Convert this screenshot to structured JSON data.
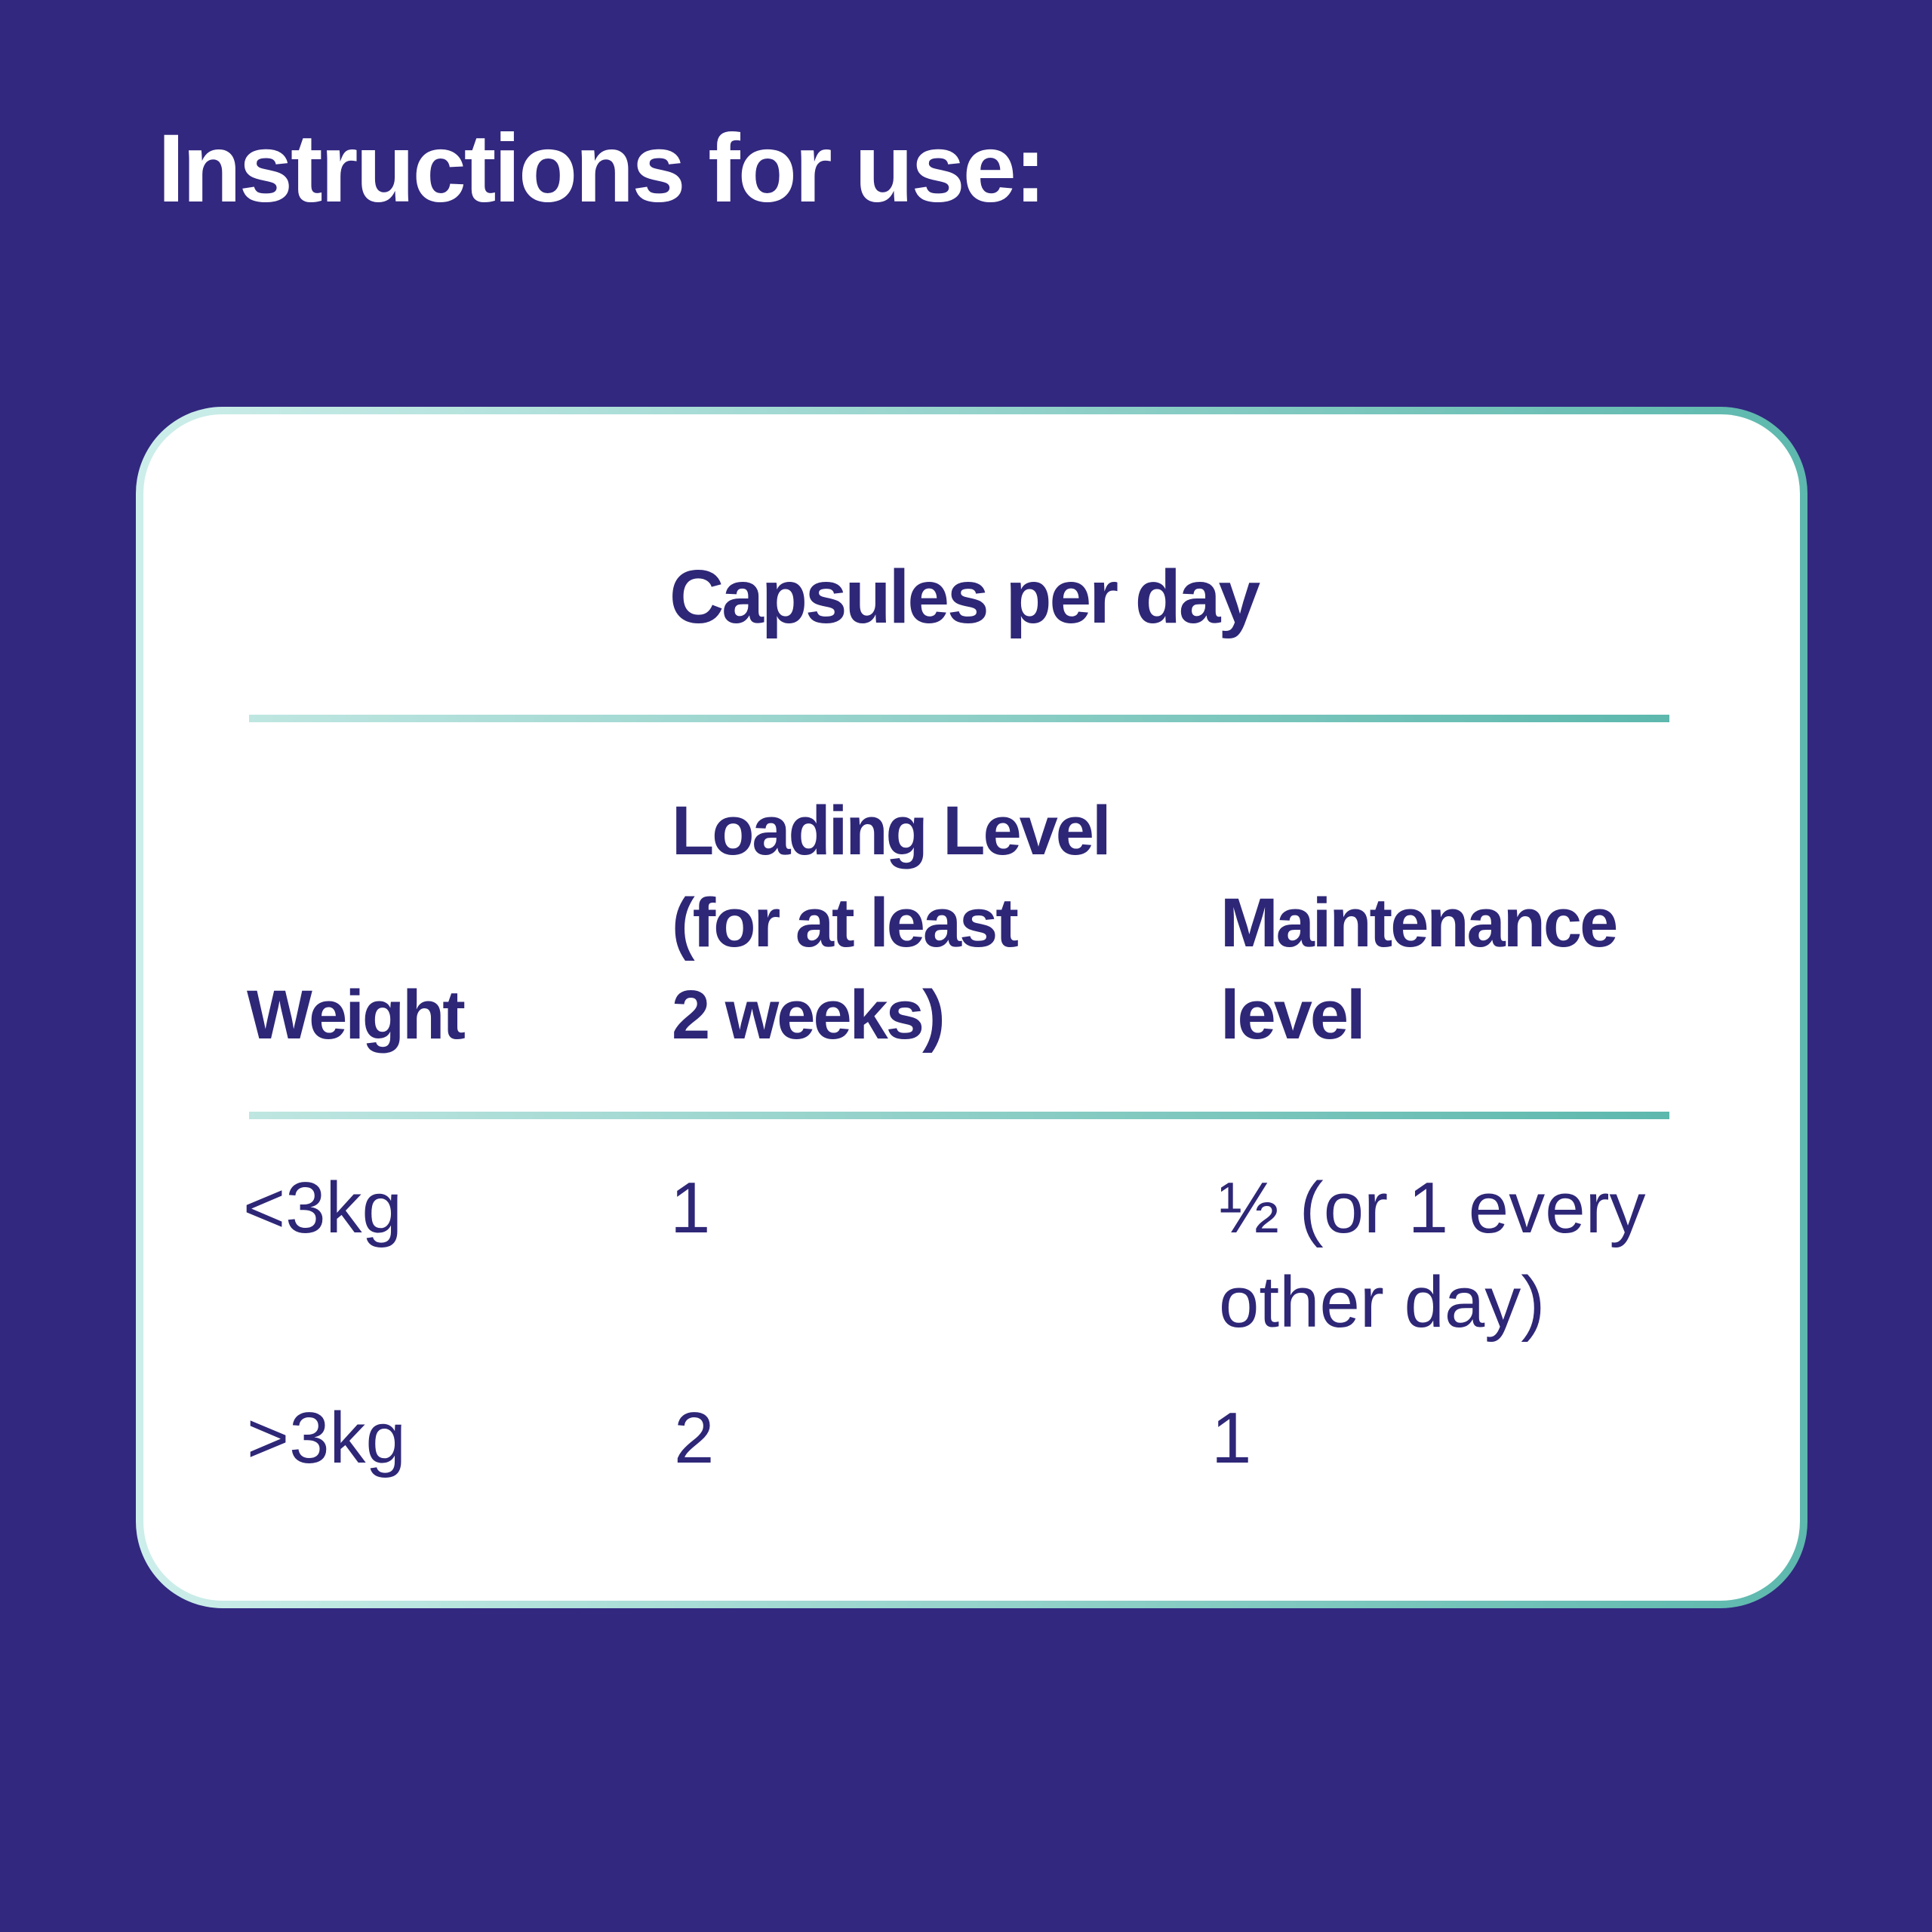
{
  "title": "Instructions for use:",
  "table": {
    "group_header": "Capsules per day",
    "columns": [
      "Weight",
      "Loading Level (for at least 2 weeks)",
      "Maintenance level"
    ],
    "column_lines": {
      "loading": [
        "Loading Level",
        "(for at least",
        "2 weeks)"
      ],
      "maintenance": [
        "Maintenance",
        "level"
      ]
    },
    "rows": [
      {
        "weight": "<3kg",
        "loading": "1",
        "maintenance_lines": [
          "½ (or 1 every",
          "other day)"
        ]
      },
      {
        "weight": ">3kg",
        "loading": "2",
        "maintenance_lines": [
          "1"
        ]
      }
    ]
  },
  "colors": {
    "background": "#32287f",
    "text": "#2e2777",
    "accent": "#5db8ad"
  }
}
